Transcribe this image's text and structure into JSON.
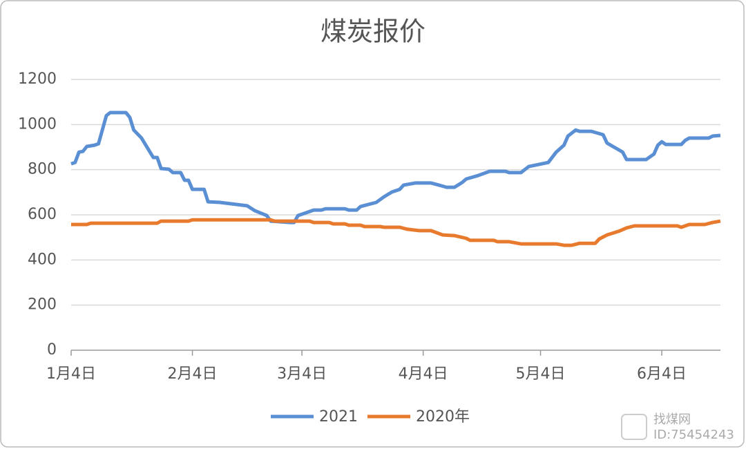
{
  "chart_data": {
    "type": "line",
    "title": "煤炭报价",
    "xlim": [
      0,
      166
    ],
    "xticks": [
      {
        "value": 0,
        "label": "1月4日"
      },
      {
        "value": 31,
        "label": "2月4日"
      },
      {
        "value": 59,
        "label": "3月4日"
      },
      {
        "value": 90,
        "label": "4月4日"
      },
      {
        "value": 120,
        "label": "5月4日"
      },
      {
        "value": 151,
        "label": "6月4日"
      }
    ],
    "ylim": [
      0,
      1200
    ],
    "yticks": [
      0,
      200,
      400,
      600,
      800,
      1000,
      1200
    ],
    "grid": true,
    "legend": "bottom",
    "series": [
      {
        "name": "2021",
        "color": "#5b8fd4",
        "x": [
          0,
          1,
          2,
          3,
          4,
          6,
          7,
          9,
          10,
          14,
          15,
          16,
          18,
          21,
          22,
          23,
          25,
          26,
          28,
          29,
          30,
          31,
          34,
          35,
          38,
          45,
          47,
          50,
          51,
          56,
          57,
          58,
          60,
          62,
          64,
          65,
          70,
          71,
          73,
          74,
          78,
          80,
          82,
          84,
          85,
          88,
          92,
          94,
          96,
          98,
          100,
          101,
          104,
          107,
          111,
          112,
          115,
          117,
          122,
          124,
          126,
          127,
          129,
          130,
          133,
          136,
          137,
          141,
          142,
          147,
          149,
          150,
          151,
          152,
          156,
          157,
          158,
          163,
          164,
          166
        ],
        "values": [
          826,
          832,
          878,
          881,
          903,
          909,
          915,
          1040,
          1053,
          1053,
          1032,
          976,
          940,
          854,
          854,
          805,
          802,
          787,
          787,
          753,
          753,
          713,
          713,
          658,
          655,
          640,
          618,
          597,
          572,
          566,
          566,
          597,
          609,
          621,
          621,
          627,
          627,
          621,
          621,
          637,
          655,
          680,
          701,
          713,
          732,
          741,
          741,
          732,
          722,
          722,
          744,
          759,
          774,
          793,
          793,
          787,
          787,
          814,
          832,
          878,
          909,
          949,
          976,
          970,
          970,
          955,
          918,
          878,
          845,
          845,
          869,
          909,
          924,
          912,
          912,
          930,
          940,
          940,
          949,
          952
        ]
      },
      {
        "name": "2020年",
        "color": "#e87a2e",
        "x": [
          0,
          4,
          5,
          22,
          23,
          30,
          31,
          51,
          52,
          61,
          62,
          66,
          67,
          70,
          71,
          74,
          75,
          79,
          80,
          84,
          86,
          89,
          92,
          95,
          98,
          101,
          102,
          108,
          109,
          112,
          115,
          124,
          126,
          128,
          130,
          134,
          135,
          137,
          140,
          142,
          144,
          155,
          156,
          157,
          158,
          162,
          164,
          166
        ],
        "values": [
          557,
          557,
          563,
          563,
          572,
          572,
          578,
          578,
          572,
          572,
          566,
          566,
          560,
          560,
          554,
          554,
          548,
          548,
          545,
          545,
          536,
          530,
          530,
          511,
          508,
          496,
          487,
          487,
          481,
          481,
          471,
          471,
          465,
          465,
          474,
          474,
          493,
          511,
          527,
          542,
          551,
          551,
          545,
          551,
          557,
          557,
          566,
          572
        ]
      }
    ],
    "watermark": {
      "name": "找煤网",
      "id": "ID:75454243"
    }
  }
}
